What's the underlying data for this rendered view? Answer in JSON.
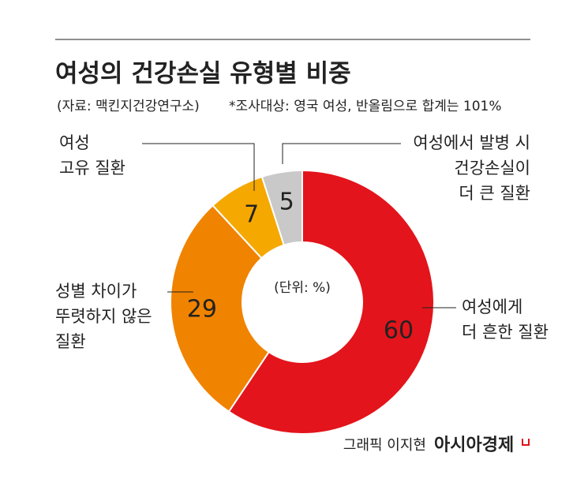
{
  "chart_data": {
    "type": "donut",
    "title": "여성의 건강손실 유형별 비중",
    "source": "(자료: 맥킨지건강연구소)",
    "note": "*조사대상: 영국 여성, 반올림으로 합계는 101%",
    "unit_label": "(단위: %)",
    "categories": [
      [
        "여성에게",
        "더 흔한 질환"
      ],
      [
        "성별 차이가",
        "뚜렷하지 않은",
        "질환"
      ],
      [
        "여성",
        "고유 질환"
      ],
      [
        "여성에서 발병 시",
        "건강손실이",
        "더 큰 질환"
      ]
    ],
    "values": [
      60,
      29,
      7,
      5
    ],
    "colors": [
      "#e3141b",
      "#f08300",
      "#f5a800",
      "#c9c9c9"
    ],
    "credit": "그래픽 이지현",
    "publisher": "아시아경제"
  }
}
